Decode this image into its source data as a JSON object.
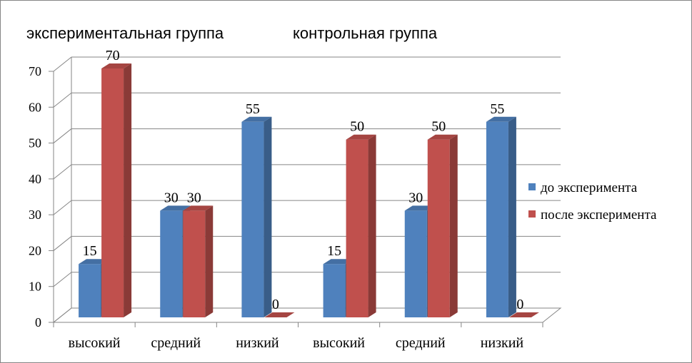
{
  "chart_data": {
    "type": "bar",
    "group_labels": [
      "экспериментальная группа",
      "контрольная группа"
    ],
    "categories": [
      "высокий",
      "средний",
      "низкий",
      "высокий",
      "средний",
      "низкий"
    ],
    "series": [
      {
        "name": "до эксперимента",
        "color": "#4F81BD",
        "values": [
          15,
          30,
          55,
          15,
          30,
          55
        ]
      },
      {
        "name": "после эксперимента",
        "color": "#C0504D",
        "values": [
          70,
          30,
          0,
          50,
          50,
          0
        ]
      }
    ],
    "ylim": [
      0,
      70
    ],
    "yticks": [
      0,
      10,
      20,
      30,
      40,
      50,
      60,
      70
    ],
    "grid": true,
    "legend": "right"
  }
}
